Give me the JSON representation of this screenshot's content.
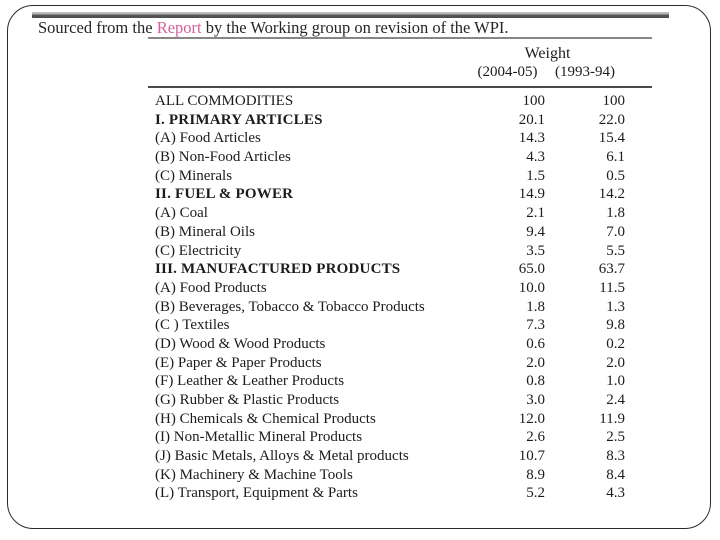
{
  "caption": {
    "prefix": "Sourced from the ",
    "link_text": "Report",
    "suffix": " by the Working group on revision of the WPI."
  },
  "table": {
    "header": {
      "group_label": "Weight",
      "col_2004": "(2004-05)",
      "col_1993": "(1993-94)"
    },
    "rows": [
      {
        "label": "ALL COMMODITIES",
        "w2004": "100",
        "w1993": "100",
        "style": "normal"
      },
      {
        "label": "I. PRIMARY ARTICLES",
        "w2004": "20.1",
        "w1993": "22.0",
        "style": "bold"
      },
      {
        "label": "(A) Food Articles",
        "w2004": "14.3",
        "w1993": "15.4",
        "style": "normal"
      },
      {
        "label": "(B) Non-Food Articles",
        "w2004": "4.3",
        "w1993": "6.1",
        "style": "normal"
      },
      {
        "label": "(C) Minerals",
        "w2004": "1.5",
        "w1993": "0.5",
        "style": "normal"
      },
      {
        "label": "II. FUEL & POWER",
        "w2004": "14.9",
        "w1993": "14.2",
        "style": "bold"
      },
      {
        "label": "(A) Coal",
        "w2004": "2.1",
        "w1993": "1.8",
        "style": "normal"
      },
      {
        "label": "(B) Mineral Oils",
        "w2004": "9.4",
        "w1993": "7.0",
        "style": "normal"
      },
      {
        "label": "(C) Electricity",
        "w2004": "3.5",
        "w1993": "5.5",
        "style": "normal"
      },
      {
        "label": "III. MANUFACTURED PRODUCTS",
        "w2004": "65.0",
        "w1993": "63.7",
        "style": "bold"
      },
      {
        "label": "(A) Food Products",
        "w2004": "10.0",
        "w1993": "11.5",
        "style": "normal"
      },
      {
        "label": "(B) Beverages, Tobacco & Tobacco Products",
        "w2004": "1.8",
        "w1993": "1.3",
        "style": "normal"
      },
      {
        "label": "(C ) Textiles",
        "w2004": "7.3",
        "w1993": "9.8",
        "style": "normal"
      },
      {
        "label": "(D) Wood & Wood Products",
        "w2004": "0.6",
        "w1993": "0.2",
        "style": "normal"
      },
      {
        "label": "(E) Paper & Paper Products",
        "w2004": "2.0",
        "w1993": "2.0",
        "style": "normal"
      },
      {
        "label": "(F) Leather & Leather Products",
        "w2004": "0.8",
        "w1993": "1.0",
        "style": "normal"
      },
      {
        "label": "(G) Rubber & Plastic Products",
        "w2004": "3.0",
        "w1993": "2.4",
        "style": "normal"
      },
      {
        "label": "(H) Chemicals & Chemical Products",
        "w2004": "12.0",
        "w1993": "11.9",
        "style": "normal"
      },
      {
        "label": "(I) Non-Metallic Mineral Products",
        "w2004": "2.6",
        "w1993": "2.5",
        "style": "normal"
      },
      {
        "label": "(J) Basic Metals, Alloys & Metal products",
        "w2004": "10.7",
        "w1993": "8.3",
        "style": "normal"
      },
      {
        "label": "(K) Machinery & Machine Tools",
        "w2004": "8.9",
        "w1993": "8.4",
        "style": "normal"
      },
      {
        "label": "(L) Transport, Equipment & Parts",
        "w2004": "5.2",
        "w1993": "4.3",
        "style": "normal"
      }
    ]
  },
  "colors": {
    "link_pink": "#d4609f",
    "text": "#1c1c1c",
    "rule_top": "#868686",
    "rule_mid": "#4a4a4a"
  }
}
